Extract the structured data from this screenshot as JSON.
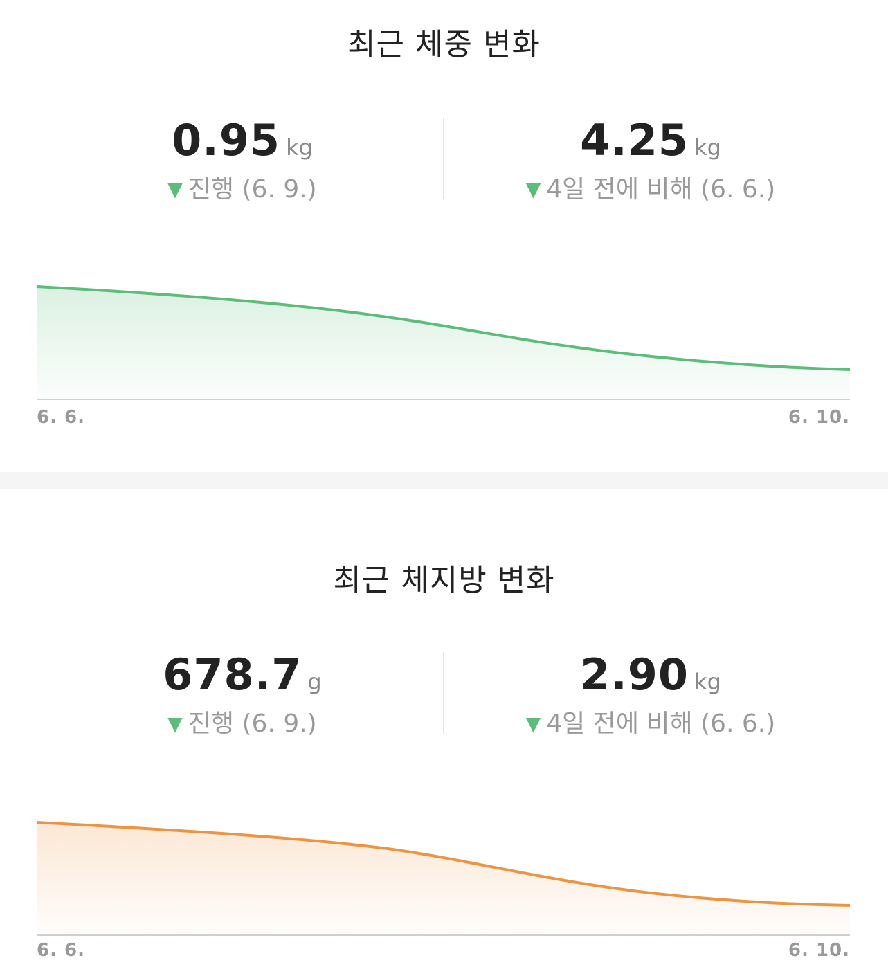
{
  "weight_card": {
    "title": "최근 체중 변화",
    "left_stat": {
      "value": "0.95",
      "unit": "kg",
      "arrow": "▼",
      "caption": "진행 (6. 9.)"
    },
    "right_stat": {
      "value": "4.25",
      "unit": "kg",
      "arrow": "▼",
      "caption": "4일 전에 비해 (6. 6.)"
    },
    "x_start_label": "6. 6.",
    "x_end_label": "6. 10.",
    "line_color": "#5cbd7a",
    "fill_color": "#5cbd7a"
  },
  "fat_card": {
    "title": "최근 체지방 변화",
    "left_stat": {
      "value": "678.7",
      "unit": "g",
      "arrow": "▼",
      "caption": "진행 (6. 9.)"
    },
    "right_stat": {
      "value": "2.90",
      "unit": "kg",
      "arrow": "▼",
      "caption": "4일 전에 비해 (6. 6.)"
    },
    "x_start_label": "6. 6.",
    "x_end_label": "6. 10.",
    "line_color": "#ee9440",
    "fill_color": "#ee9440"
  },
  "arrow_color": "#5cbd7a",
  "icons": {
    "trend_down": "triangle-down-icon"
  }
}
